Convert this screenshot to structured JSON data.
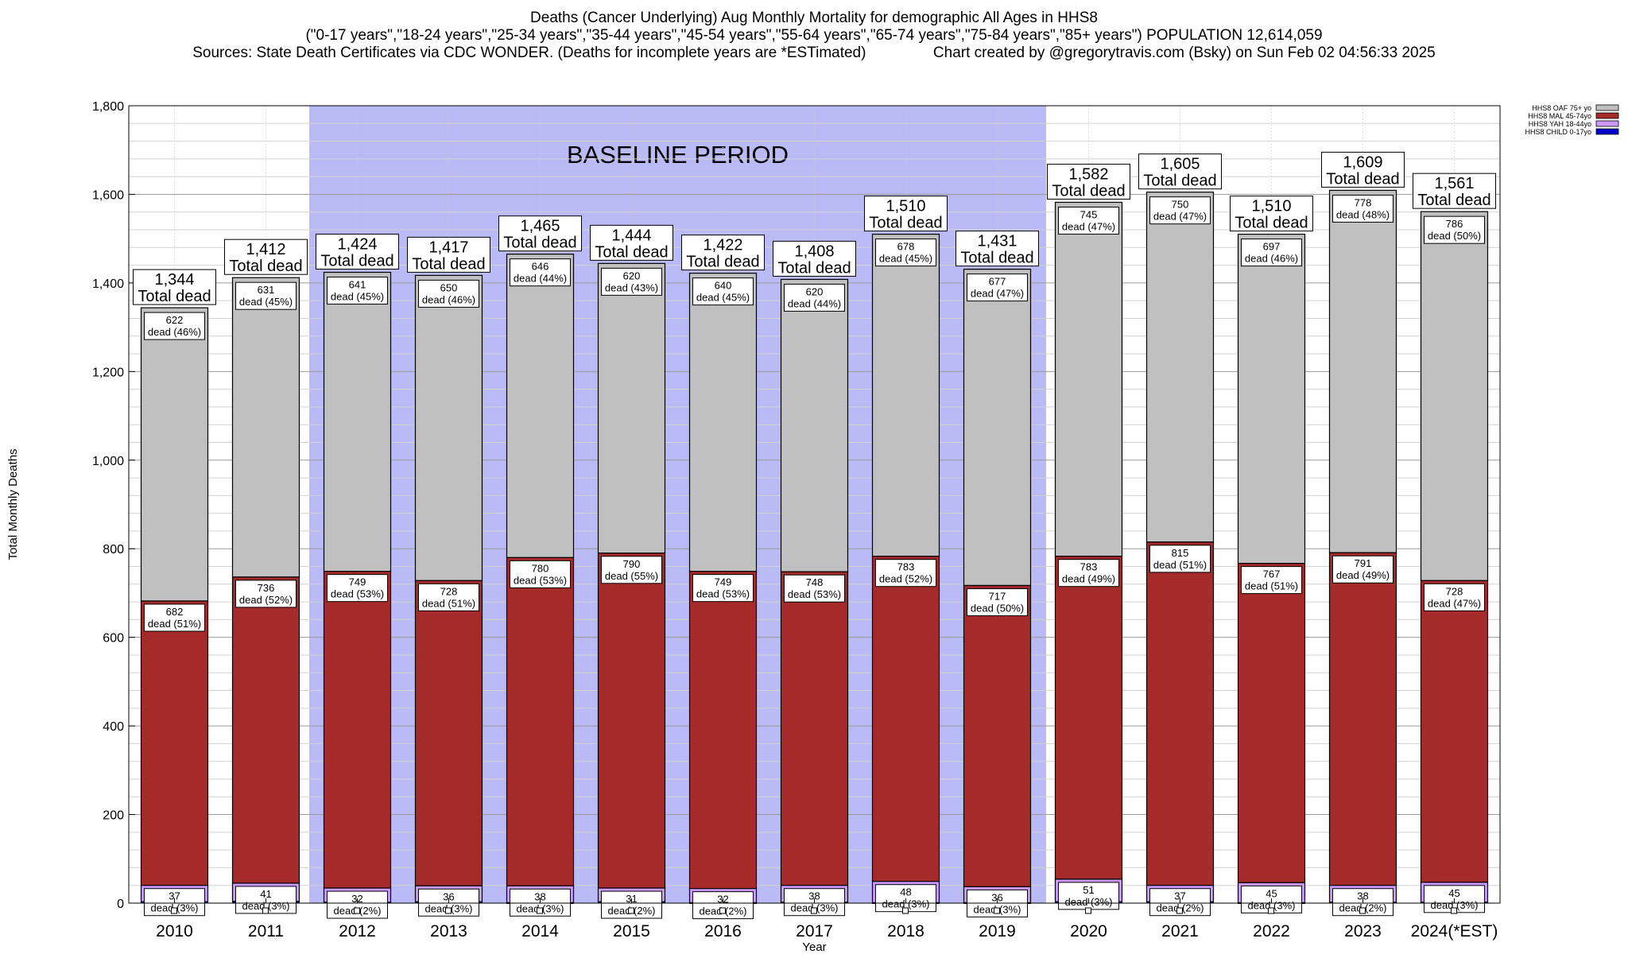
{
  "header": {
    "line1": "Deaths (Cancer Underlying) Aug Monthly Mortality for demographic All Ages in HHS8",
    "line2": "(\"0-17 years\",\"18-24 years\",\"25-34 years\",\"35-44 years\",\"45-54 years\",\"55-64 years\",\"65-74 years\",\"75-84 years\",\"85+ years\") POPULATION 12,614,059",
    "line3": "Sources: State Death Certificates via CDC WONDER. (Deaths for incomplete years are *ESTimated)                Chart created by @gregorytravis.com (Bsky) on Sun Feb 02 04:56:33 2025"
  },
  "colors": {
    "oaf": "#c0c0c0",
    "mal": "#a52a2a",
    "yah": "#cc99ff",
    "child": "#0000cc",
    "baseline": "#babaf7"
  },
  "chart_data": {
    "type": "bar",
    "stacked": true,
    "xlabel": "Year",
    "ylabel": "Total Monthly Deaths",
    "ylim": [
      0,
      1800
    ],
    "y_ticks": [
      "0",
      "200",
      "400",
      "600",
      "800",
      "1,000",
      "1,200",
      "1,400",
      "1,600",
      "1,800"
    ],
    "categories": [
      "2010",
      "2011",
      "2012",
      "2013",
      "2014",
      "2015",
      "2016",
      "2017",
      "2018",
      "2019",
      "2020",
      "2021",
      "2022",
      "2023",
      "2024(*EST)"
    ],
    "totals": [
      1344,
      1412,
      1424,
      1417,
      1465,
      1444,
      1422,
      1408,
      1510,
      1431,
      1582,
      1605,
      1510,
      1609,
      1561
    ],
    "total_labels": [
      "1,344",
      "1,412",
      "1,424",
      "1,417",
      "1,465",
      "1,444",
      "1,422",
      "1,408",
      "1,510",
      "1,431",
      "1,582",
      "1,605",
      "1,510",
      "1,609",
      "1,561"
    ],
    "total_suffix": "Total dead",
    "series": [
      {
        "name": "HHS8 OAF 75+ yo",
        "key": "oaf",
        "values": [
          622,
          631,
          641,
          650,
          646,
          620,
          640,
          620,
          678,
          677,
          745,
          750,
          697,
          778,
          786
        ],
        "pct": [
          "46%",
          "45%",
          "45%",
          "46%",
          "44%",
          "43%",
          "45%",
          "44%",
          "45%",
          "47%",
          "47%",
          "47%",
          "46%",
          "48%",
          "50%"
        ]
      },
      {
        "name": "HHS8 MAL 45-74yo",
        "key": "mal",
        "values": [
          682,
          736,
          749,
          728,
          780,
          790,
          749,
          748,
          783,
          717,
          783,
          815,
          767,
          791,
          728
        ],
        "pct": [
          "51%",
          "52%",
          "53%",
          "51%",
          "53%",
          "55%",
          "53%",
          "53%",
          "52%",
          "50%",
          "49%",
          "51%",
          "51%",
          "49%",
          "47%"
        ]
      },
      {
        "name": "HHS8 YAH 18-44yo",
        "key": "yah",
        "values": [
          37,
          41,
          32,
          36,
          38,
          31,
          32,
          38,
          48,
          36,
          51,
          37,
          45,
          38,
          45
        ],
        "pct": [
          "3%",
          "3%",
          "2%",
          "3%",
          "3%",
          "2%",
          "2%",
          "3%",
          "3%",
          "3%",
          "3%",
          "2%",
          "3%",
          "2%",
          "3%"
        ]
      },
      {
        "name": "HHS8 CHILD 0-17yo",
        "key": "child",
        "values": [
          3,
          4,
          2,
          3,
          1,
          3,
          1,
          2,
          1,
          1,
          3,
          3,
          1,
          2,
          2
        ],
        "pct": []
      }
    ],
    "legend": [
      "HHS8 OAF 75+ yo",
      "HHS8 MAL 45-74yo",
      "HHS8 YAH 18-44yo",
      "HHS8 CHILD 0-17yo"
    ],
    "legend_position": "top-right",
    "baseline": {
      "label": "BASELINE PERIOD",
      "from": "2012",
      "to": "2019"
    },
    "grid": true
  }
}
